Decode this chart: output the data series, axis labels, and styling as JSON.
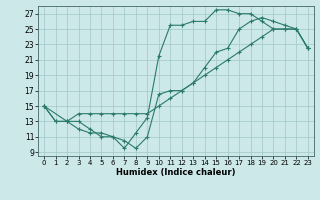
{
  "title": "",
  "xlabel": "Humidex (Indice chaleur)",
  "ylabel": "",
  "background_color": "#cce8e8",
  "line_color": "#2a7a6a",
  "grid_color": "#a0c8c8",
  "xlim": [
    -0.5,
    23.5
  ],
  "ylim": [
    8.5,
    28
  ],
  "xticks": [
    0,
    1,
    2,
    3,
    4,
    5,
    6,
    7,
    8,
    9,
    10,
    11,
    12,
    13,
    14,
    15,
    16,
    17,
    18,
    19,
    20,
    21,
    22,
    23
  ],
  "yticks": [
    9,
    11,
    13,
    15,
    17,
    19,
    21,
    23,
    25,
    27
  ],
  "line1_x": [
    0,
    1,
    2,
    3,
    4,
    5,
    6,
    7,
    8,
    9,
    10,
    11,
    12,
    13,
    14,
    15,
    16,
    17,
    18,
    19,
    20,
    21,
    22,
    23
  ],
  "line1_y": [
    15,
    13,
    13,
    13,
    12,
    11,
    11,
    9.5,
    11.5,
    13.5,
    21.5,
    25.5,
    25.5,
    26,
    26,
    27.5,
    27.5,
    27,
    27,
    26,
    25,
    25,
    25,
    22.5
  ],
  "line2_x": [
    0,
    1,
    2,
    3,
    4,
    5,
    6,
    7,
    8,
    9,
    10,
    11,
    12,
    13,
    14,
    15,
    16,
    17,
    18,
    19,
    20,
    21,
    22,
    23
  ],
  "line2_y": [
    15,
    13,
    13,
    14,
    14,
    14,
    14,
    14,
    14,
    14,
    15,
    16,
    17,
    18,
    19,
    20,
    21,
    22,
    23,
    24,
    25,
    25,
    25,
    22.5
  ],
  "line3_x": [
    0,
    2,
    3,
    4,
    5,
    6,
    7,
    8,
    9,
    10,
    11,
    12,
    13,
    14,
    15,
    16,
    17,
    18,
    19,
    20,
    21,
    22,
    23
  ],
  "line3_y": [
    15,
    13,
    12,
    11.5,
    11.5,
    11,
    10.5,
    9.5,
    11,
    16.5,
    17,
    17,
    18,
    20,
    22,
    22.5,
    25,
    26,
    26.5,
    26,
    25.5,
    25,
    22.5
  ],
  "tick_fontsize": 5,
  "xlabel_fontsize": 6
}
